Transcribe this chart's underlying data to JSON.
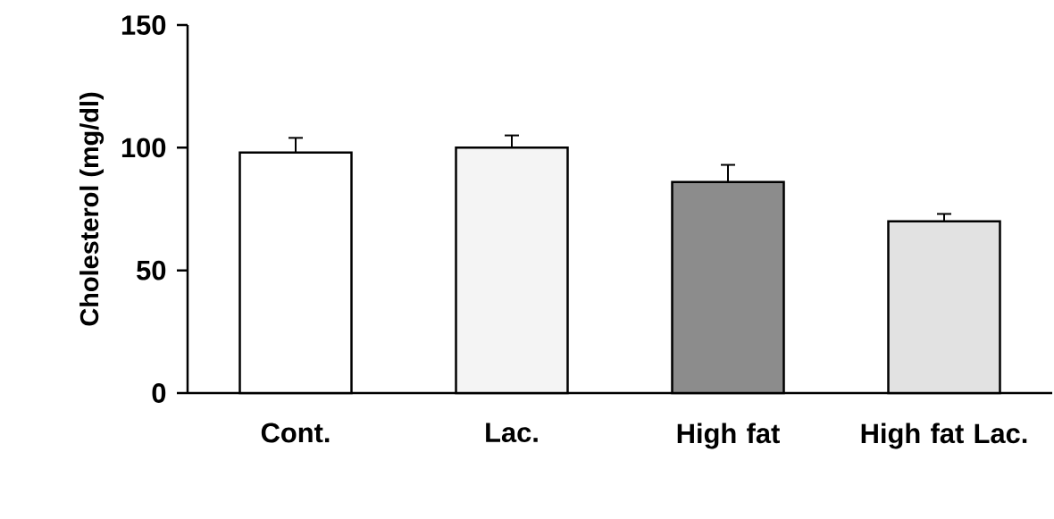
{
  "chart_data": {
    "type": "bar",
    "ylabel": "Cholesterol (mg/dl)",
    "categories": [
      "Cont.",
      "Lac.",
      "High fat",
      "High fat Lac."
    ],
    "values": [
      98,
      100,
      86,
      70
    ],
    "errors": [
      6,
      5,
      7,
      3
    ],
    "colors": [
      "#ffffff",
      "#f4f4f4",
      "#8c8c8c",
      "#e2e2e2"
    ],
    "ylim": [
      0,
      150
    ],
    "yticks": [
      0,
      50,
      100,
      150
    ],
    "grid": false
  }
}
